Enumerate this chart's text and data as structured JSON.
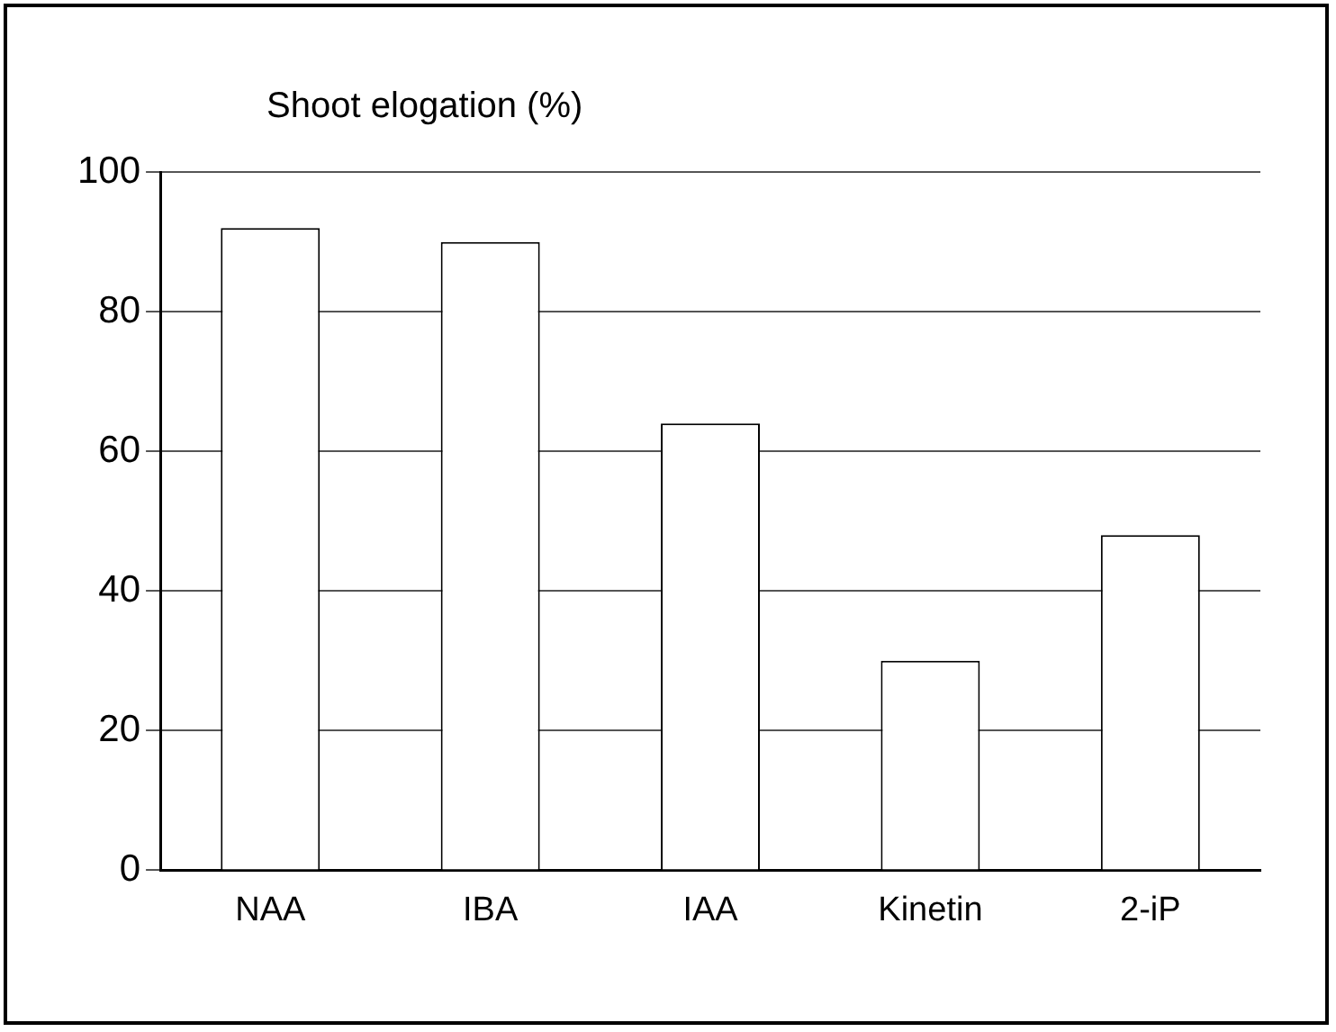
{
  "chart_data": {
    "type": "bar",
    "ylabel": "Shoot elogation (%)",
    "categories": [
      "NAA",
      "IBA",
      "IAA",
      "Kinetin",
      "2-iP"
    ],
    "values": [
      92,
      90,
      64,
      30,
      48
    ],
    "color": "#ffffff",
    "ylim": [
      0,
      100
    ],
    "yticks": [
      0,
      20,
      40,
      60,
      80,
      100
    ],
    "grid": "y",
    "legend": false
  }
}
